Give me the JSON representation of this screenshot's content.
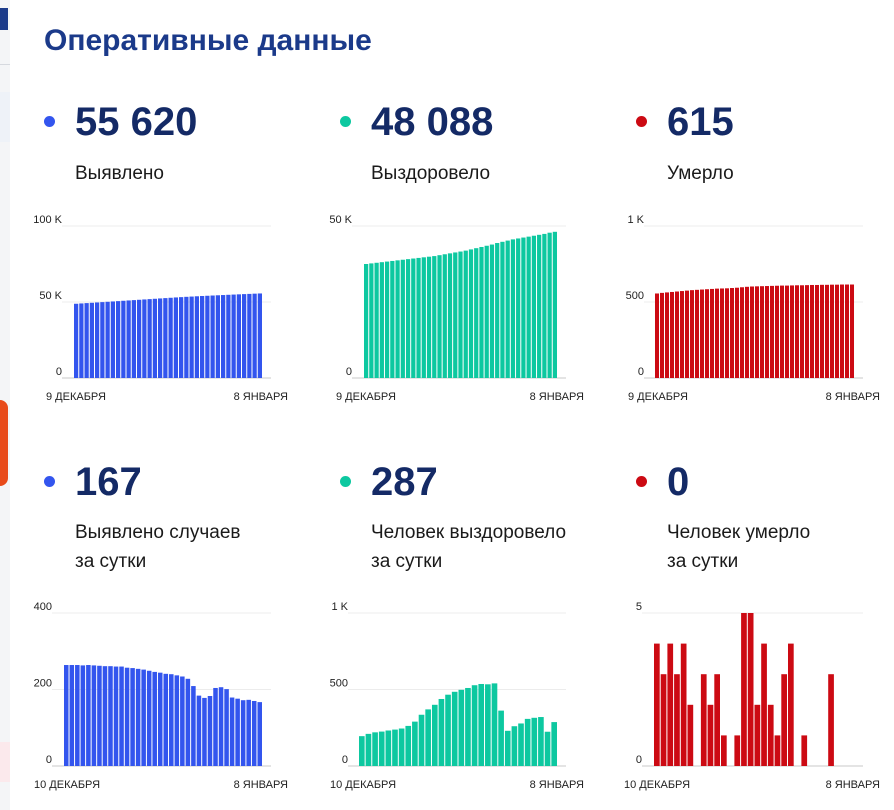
{
  "page_title": "Оперативные данные",
  "colors": {
    "blue": "#3355ee",
    "teal": "#0dc8a0",
    "red": "#cc0a13",
    "title": "#1b3a8a",
    "number": "#142a66"
  },
  "cards": [
    {
      "number": "55 620",
      "label_line1": "Выявлено",
      "label_line2": ""
    },
    {
      "number": "48 088",
      "label_line1": "Выздоровело",
      "label_line2": ""
    },
    {
      "number": "615",
      "label_line1": "Умерло",
      "label_line2": ""
    },
    {
      "number": "167",
      "label_line1": "Выявлено случаев",
      "label_line2": "за сутки"
    },
    {
      "number": "287",
      "label_line1": "Человек выздоровело",
      "label_line2": "за сутки"
    },
    {
      "number": "0",
      "label_line1": "Человек умерло",
      "label_line2": "за сутки"
    }
  ],
  "chart_data": [
    {
      "type": "bar",
      "color": "#3355ee",
      "x_start": "9 ДЕКАБРЯ",
      "x_end": "8 ЯНВАРЯ",
      "y_ticks": [
        {
          "v": 0,
          "label": "0"
        },
        {
          "v": 50000,
          "label": "50 K"
        },
        {
          "v": 100000,
          "label": "100 K"
        }
      ],
      "ylim": [
        0,
        100000
      ],
      "values": [
        48850,
        49060,
        49270,
        49480,
        49700,
        49920,
        50140,
        50360,
        50580,
        50800,
        51020,
        51240,
        51460,
        51680,
        51900,
        52120,
        52340,
        52560,
        52780,
        53000,
        53200,
        53400,
        53580,
        53760,
        53940,
        54100,
        54260,
        54420,
        54580,
        54740,
        54890,
        55040,
        55190,
        55330,
        55480,
        55620
      ]
    },
    {
      "type": "bar",
      "color": "#0dc8a0",
      "x_start": "9 ДЕКАБРЯ",
      "x_end": "8 ЯНВАРЯ",
      "y_ticks": [
        {
          "v": 0,
          "label": "0"
        },
        {
          "v": 50000,
          "label": "50 K"
        }
      ],
      "ylim": [
        0,
        50000
      ],
      "values": [
        37500,
        37700,
        37900,
        38100,
        38300,
        38500,
        38700,
        38900,
        39100,
        39300,
        39500,
        39700,
        39900,
        40100,
        40400,
        40700,
        41000,
        41300,
        41600,
        41900,
        42300,
        42700,
        43100,
        43500,
        43900,
        44400,
        44800,
        45200,
        45600,
        45900,
        46200,
        46500,
        46800,
        47100,
        47400,
        47800,
        48088
      ]
    },
    {
      "type": "bar",
      "color": "#cc0a13",
      "x_start": "9 ДЕКАБРЯ",
      "x_end": "8 ЯНВАРЯ",
      "y_ticks": [
        {
          "v": 0,
          "label": "0"
        },
        {
          "v": 500,
          "label": "500"
        },
        {
          "v": 1000,
          "label": "1 K"
        }
      ],
      "ylim": [
        0,
        1000
      ],
      "values": [
        556,
        560,
        563,
        566,
        569,
        572,
        575,
        578,
        580,
        582,
        584,
        586,
        588,
        589,
        590,
        592,
        594,
        597,
        600,
        602,
        603,
        604,
        605,
        606,
        607,
        608,
        608,
        609,
        610,
        610,
        611,
        612,
        612,
        613,
        613,
        614,
        614,
        615,
        615,
        615
      ]
    },
    {
      "type": "bar",
      "color": "#3355ee",
      "x_start": "10 ДЕКАБРЯ",
      "x_end": "8 ЯНВАРЯ",
      "y_ticks": [
        {
          "v": 0,
          "label": "0"
        },
        {
          "v": 200,
          "label": "200"
        },
        {
          "v": 400,
          "label": "400"
        }
      ],
      "ylim": [
        0,
        400
      ],
      "values": [
        264,
        264,
        264,
        263,
        264,
        263,
        262,
        261,
        261,
        260,
        260,
        257,
        256,
        254,
        252,
        249,
        246,
        244,
        241,
        240,
        237,
        234,
        228,
        209,
        184,
        178,
        183,
        204,
        206,
        201,
        179,
        176,
        172,
        173,
        170,
        167
      ]
    },
    {
      "type": "bar",
      "color": "#0dc8a0",
      "x_start": "10 ДЕКАБРЯ",
      "x_end": "8 ЯНВАРЯ",
      "y_ticks": [
        {
          "v": 0,
          "label": "0"
        },
        {
          "v": 500,
          "label": "500"
        },
        {
          "v": 1000,
          "label": "1 K"
        }
      ],
      "ylim": [
        0,
        1000
      ],
      "values": [
        195,
        210,
        220,
        225,
        232,
        238,
        245,
        262,
        290,
        335,
        370,
        400,
        438,
        466,
        485,
        498,
        510,
        528,
        536,
        534,
        540,
        362,
        230,
        260,
        278,
        308,
        315,
        320,
        224,
        287
      ]
    },
    {
      "type": "bar",
      "color": "#cc0a13",
      "x_start": "10 ДЕКАБРЯ",
      "x_end": "8 ЯНВАРЯ",
      "y_ticks": [
        {
          "v": 0,
          "label": "0"
        },
        {
          "v": 5,
          "label": "5"
        }
      ],
      "ylim": [
        0,
        5
      ],
      "values": [
        4,
        3,
        4,
        3,
        4,
        2,
        0,
        3,
        2,
        3,
        1,
        0,
        1,
        5,
        5,
        2,
        4,
        2,
        1,
        3,
        4,
        0,
        1,
        0,
        0,
        0,
        3,
        0,
        0,
        0
      ]
    }
  ]
}
